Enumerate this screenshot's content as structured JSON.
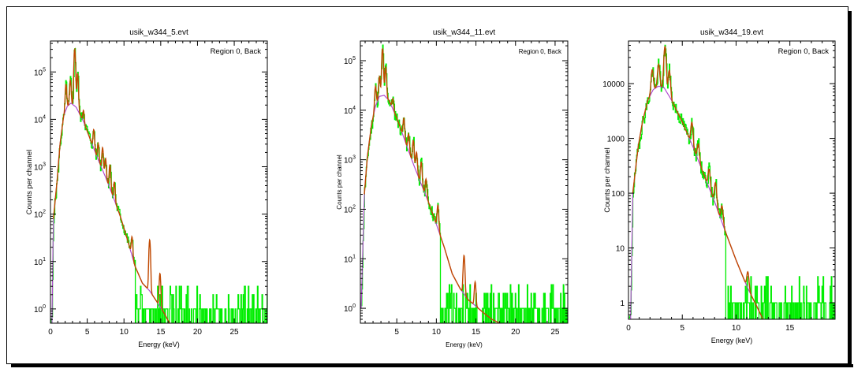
{
  "chart_data": [
    {
      "type": "line",
      "title": "usik_w344_5.evt",
      "annotation": "Region 0, Back",
      "xlabel": "Energy (keV)",
      "ylabel": "Counts per channel",
      "xlim": [
        0,
        29.5
      ],
      "ylim": [
        0.5,
        450000
      ],
      "log_y": true,
      "grid": false,
      "x_ticks": [
        {
          "v": 0,
          "label": "0"
        },
        {
          "v": 5,
          "label": "5"
        },
        {
          "v": 10,
          "label": "10"
        },
        {
          "v": 15,
          "label": "15"
        },
        {
          "v": 20,
          "label": "20"
        },
        {
          "v": 25,
          "label": "25"
        }
      ],
      "y_ticks": [
        {
          "v": 1,
          "base": "10",
          "exp": "0"
        },
        {
          "v": 10,
          "base": "10",
          "exp": "1"
        },
        {
          "v": 100,
          "base": "10",
          "exp": "2"
        },
        {
          "v": 1000,
          "base": "10",
          "exp": "3"
        },
        {
          "v": 10000,
          "base": "10",
          "exp": "4"
        },
        {
          "v": 100000,
          "base": "10",
          "exp": "5"
        }
      ],
      "colors": {
        "data": "#00ee00",
        "model": "#c04800",
        "fit": "#b04bd0"
      },
      "continuum": [
        [
          0.2,
          0.5
        ],
        [
          0.4,
          80
        ],
        [
          0.9,
          500
        ],
        [
          1.3,
          3000
        ],
        [
          1.8,
          12000
        ],
        [
          2.3,
          19000
        ],
        [
          2.8,
          22000
        ],
        [
          3.5,
          18000
        ],
        [
          4.5,
          9000
        ],
        [
          5.5,
          3500
        ],
        [
          6.5,
          1400
        ],
        [
          7.5,
          600
        ],
        [
          8.5,
          240
        ],
        [
          9.5,
          90
        ],
        [
          10.5,
          28
        ],
        [
          11.5,
          8
        ],
        [
          12.5,
          3.5
        ],
        [
          13.5,
          2.4
        ],
        [
          14.5,
          1.4
        ],
        [
          15.5,
          0.8
        ],
        [
          16.2,
          0.5
        ]
      ],
      "lines": [
        [
          2.1,
          3.5
        ],
        [
          2.7,
          3.2
        ],
        [
          3.3,
          16
        ],
        [
          3.7,
          6
        ],
        [
          4.5,
          1.7
        ],
        [
          5.9,
          2.5
        ],
        [
          6.5,
          2.2
        ],
        [
          7.1,
          3
        ],
        [
          7.5,
          2.5
        ],
        [
          8.1,
          3.2
        ],
        [
          8.7,
          2.4
        ],
        [
          11.1,
          2.5
        ],
        [
          13.5,
          12
        ],
        [
          14.9,
          5
        ]
      ],
      "noise_x0": 11.5,
      "noise_x1": 29.5,
      "seed": 5
    },
    {
      "type": "line",
      "title": "usik_w344_11.evt",
      "annotation": "Region 0, Back",
      "xlabel": "Energy (keV)",
      "ylabel": "Counts per channel",
      "xlim": [
        0.4,
        26.6
      ],
      "ylim": [
        0.5,
        250000
      ],
      "log_y": true,
      "grid": false,
      "x_ticks": [
        {
          "v": 5,
          "label": "5"
        },
        {
          "v": 10,
          "label": "10"
        },
        {
          "v": 15,
          "label": "15"
        },
        {
          "v": 20,
          "label": "20"
        },
        {
          "v": 25,
          "label": "25"
        }
      ],
      "y_ticks": [
        {
          "v": 1,
          "base": "10",
          "exp": "0"
        },
        {
          "v": 10,
          "base": "10",
          "exp": "1"
        },
        {
          "v": 100,
          "base": "10",
          "exp": "2"
        },
        {
          "v": 1000,
          "base": "10",
          "exp": "3"
        },
        {
          "v": 10000,
          "base": "10",
          "exp": "4"
        },
        {
          "v": 100000,
          "base": "10",
          "exp": "5"
        }
      ],
      "colors": {
        "data": "#00ee00",
        "model": "#c04800",
        "fit": "#b04bd0"
      },
      "continuum": [
        [
          0.5,
          1
        ],
        [
          0.9,
          200
        ],
        [
          1.3,
          1200
        ],
        [
          1.8,
          5000
        ],
        [
          2.3,
          12000
        ],
        [
          2.8,
          19000
        ],
        [
          3.4,
          20000
        ],
        [
          4.0,
          16000
        ],
        [
          5.0,
          7000
        ],
        [
          6.0,
          2500
        ],
        [
          7.0,
          900
        ],
        [
          8.0,
          350
        ],
        [
          9.0,
          140
        ],
        [
          10.0,
          50
        ],
        [
          11.0,
          17
        ],
        [
          12.0,
          5
        ],
        [
          13.0,
          2.5
        ],
        [
          14.0,
          1.5
        ],
        [
          15.0,
          1.1
        ],
        [
          16.0,
          0.8
        ],
        [
          17.0,
          0.6
        ],
        [
          18.0,
          0.5
        ]
      ],
      "lines": [
        [
          2.3,
          2.5
        ],
        [
          2.8,
          2.5
        ],
        [
          3.2,
          9
        ],
        [
          3.6,
          4
        ],
        [
          4.5,
          1.6
        ],
        [
          5.9,
          2.5
        ],
        [
          6.5,
          2.2
        ],
        [
          7.1,
          3
        ],
        [
          7.5,
          2.5
        ],
        [
          8.1,
          2.8
        ],
        [
          8.7,
          2.2
        ],
        [
          10.2,
          3
        ],
        [
          13.5,
          6
        ],
        [
          14.9,
          3
        ]
      ],
      "noise_x0": 10.5,
      "noise_x1": 26.6,
      "seed": 11
    },
    {
      "type": "line",
      "title": "usik_w344_19.evt",
      "annotation": "Region 0, Back",
      "xlabel": "Energy (keV)",
      "ylabel": "Counts per channel",
      "xlim": [
        0,
        19.2
      ],
      "ylim": [
        0.5,
        60000
      ],
      "log_y": true,
      "grid": false,
      "x_ticks": [
        {
          "v": 0,
          "label": "0"
        },
        {
          "v": 5,
          "label": "5"
        },
        {
          "v": 10,
          "label": "10"
        },
        {
          "v": 15,
          "label": "15"
        }
      ],
      "y_ticks": [
        {
          "v": 1,
          "label": "1"
        },
        {
          "v": 10,
          "label": "10"
        },
        {
          "v": 100,
          "label": "100"
        },
        {
          "v": 1000,
          "label": "1000"
        },
        {
          "v": 10000,
          "label": "10000"
        }
      ],
      "colors": {
        "data": "#00ee00",
        "model": "#c04800",
        "fit": "#b04bd0"
      },
      "continuum": [
        [
          0.2,
          0.5
        ],
        [
          0.4,
          100
        ],
        [
          0.9,
          700
        ],
        [
          1.3,
          2000
        ],
        [
          1.8,
          5000
        ],
        [
          2.3,
          7800
        ],
        [
          2.8,
          9000
        ],
        [
          3.3,
          8500
        ],
        [
          4.0,
          5000
        ],
        [
          5.0,
          2000
        ],
        [
          6.0,
          700
        ],
        [
          7.0,
          220
        ],
        [
          8.0,
          70
        ],
        [
          9.0,
          20
        ],
        [
          10.0,
          6
        ],
        [
          11.0,
          2
        ],
        [
          12.0,
          0.8
        ],
        [
          12.5,
          0.5
        ]
      ],
      "lines": [
        [
          2.2,
          2.5
        ],
        [
          2.8,
          2.5
        ],
        [
          3.4,
          6
        ],
        [
          3.8,
          3
        ],
        [
          5.9,
          2.5
        ],
        [
          6.5,
          2
        ],
        [
          7.5,
          2.2
        ],
        [
          8.1,
          2.5
        ],
        [
          8.7,
          2
        ],
        [
          11.1,
          2
        ],
        [
          13.4,
          3
        ],
        [
          14.9,
          2
        ]
      ],
      "noise_x0": 9.0,
      "noise_x1": 19.2,
      "seed": 19
    }
  ]
}
